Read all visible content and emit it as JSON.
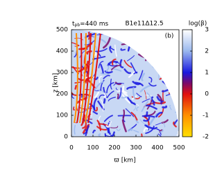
{
  "chart_data": {
    "type": "heatmap",
    "annotations": {
      "time_symbol": "t",
      "time_subscript": "pb",
      "time_text": "=440 ms",
      "model": "B1e11Δ12.5",
      "panel": "(b)"
    },
    "x_label": "ϖ [km]",
    "y_label": "z [km]",
    "xlim": [
      0,
      500
    ],
    "xticks": [
      0,
      100,
      200,
      300,
      400,
      500
    ],
    "ylim": [
      0,
      500
    ],
    "yticks": [
      0,
      100,
      200,
      300,
      400,
      500
    ],
    "colorbar": {
      "label": "log(β)",
      "lim": [
        -2,
        3
      ],
      "ticks": [
        -2,
        -1,
        0,
        1,
        2,
        3
      ],
      "colormap": [
        {
          "value": -2,
          "color": "#ffe000"
        },
        {
          "value": -1,
          "color": "#ff9000"
        },
        {
          "value": 0,
          "color": "#e01010"
        },
        {
          "value": 0.5,
          "color": "#7a0a6a"
        },
        {
          "value": 1,
          "color": "#1a1ae0"
        },
        {
          "value": 2,
          "color": "#9ab8ee"
        },
        {
          "value": 3,
          "color": "#ffffff"
        }
      ]
    }
  }
}
